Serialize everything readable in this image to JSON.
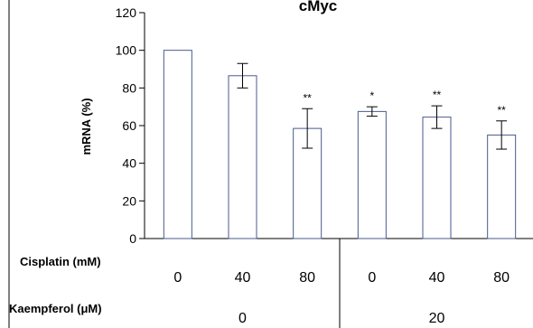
{
  "chart_data": {
    "type": "bar",
    "title": "cMyc",
    "ylabel": "mRNA (%)",
    "ylim": [
      0,
      120
    ],
    "yticks": [
      0,
      20,
      40,
      60,
      80,
      100,
      120
    ],
    "categories": [
      "0",
      "40",
      "80",
      "0",
      "40",
      "80"
    ],
    "values": [
      100,
      86.5,
      58.5,
      67.5,
      64.5,
      55
    ],
    "errors": [
      0,
      6.5,
      10.5,
      2.5,
      6,
      7.5
    ],
    "significance": [
      "",
      "",
      "**",
      "*",
      "**",
      "**"
    ],
    "bar_fill": "#ffffff",
    "bar_stroke": "#4a5a8c",
    "row_labels": {
      "cisplatin": "Cisplatin (mM)",
      "kaempferol": "Kaempferol (μM)"
    },
    "kaempferol_groups": [
      {
        "label": "0",
        "categories": [
          0,
          1,
          2
        ]
      },
      {
        "label": "20",
        "categories": [
          3,
          4,
          5
        ]
      }
    ]
  }
}
